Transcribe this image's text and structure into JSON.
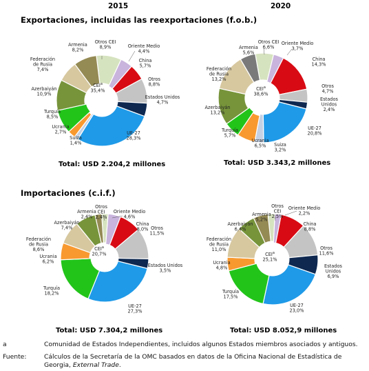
{
  "years": [
    "2015",
    "2020"
  ],
  "sections": {
    "exports": "Exportaciones, incluidas las reexportaciones (f.o.b.)",
    "imports": "Importaciones (c.i.f.)"
  },
  "totals": {
    "exp2015": "Total: USD 2.204,2 millones",
    "exp2020": "Total: USD 3.343,2 millones",
    "imp2015": "Total:  USD 7.304,2 millones",
    "imp2020": "Total: USD 8.052,9 millones"
  },
  "footnotes": {
    "a_key": "a",
    "a_text": "Comunidad de Estados Independientes, incluidos algunos Estados miembros asociados y antiguos.",
    "src_key": "Fuente:",
    "src_line1": "Cálculos de la Secretaría de la OMC basados en datos de la Oficina Nacional de Estadística de",
    "src_line2_plain": "Georgia, ",
    "src_line2_italic": "External Trade",
    "src_line2_end": "."
  },
  "colors": {
    "cei_other": "#d6e3bf",
    "oriente": "#c9b4dd",
    "china": "#d80b14",
    "otros": "#c4c4c4",
    "eeuu": "#0e2850",
    "ue": "#1f9ae8",
    "suiza": "#c4d1e4",
    "ucrania": "#f8992f",
    "turquia": "#22c41a",
    "azerbaiyan": "#77943b",
    "rusia": "#d7c8a0",
    "armenia": "#948a54",
    "gray2020": "#7a7a7a"
  },
  "chart_data": [
    {
      "type": "pie",
      "title": "Exportaciones, incluidas las reexportaciones (f.o.b.)",
      "subtitle": "2015",
      "inner_label": [
        "CEI",
        "35,4%"
      ],
      "inner_label_sup": "a",
      "slices": [
        {
          "name": "Otros CEI",
          "value": 8.9,
          "color": "#d6e3bf",
          "group": "cei"
        },
        {
          "name": "Oriente Medio",
          "value": 4.4,
          "color": "#c9b4dd"
        },
        {
          "name": "China",
          "value": 5.7,
          "color": "#d80b14"
        },
        {
          "name": "Otros",
          "value": 8.8,
          "color": "#c4c4c4"
        },
        {
          "name": "Estados Unidos",
          "value": 4.7,
          "color": "#0e2850"
        },
        {
          "name": "UE-27",
          "value": 28.3,
          "color": "#1f9ae8"
        },
        {
          "name": "Suiza",
          "value": 1.4,
          "color": "#c4d1e4"
        },
        {
          "name": "Ucrania",
          "value": 2.7,
          "color": "#f8992f",
          "group": "cei"
        },
        {
          "name": "Turquía",
          "value": 8.5,
          "color": "#22c41a"
        },
        {
          "name": "Azerbaiyán",
          "value": 10.9,
          "color": "#77943b",
          "group": "cei"
        },
        {
          "name": "Federación de Rusia",
          "value": 7.4,
          "color": "#d7c8a0",
          "group": "cei"
        },
        {
          "name": "Armenia",
          "value": 8.2,
          "color": "#948a54",
          "group": "cei"
        }
      ]
    },
    {
      "type": "pie",
      "title": "Exportaciones, incluidas las reexportaciones (f.o.b.)",
      "subtitle": "2020",
      "inner_label": [
        "CEI",
        "38,6%"
      ],
      "inner_label_sup": "a",
      "slices": [
        {
          "name": "Otros CEI",
          "value": 6.6,
          "color": "#d6e3bf",
          "group": "cei"
        },
        {
          "name": "Oriente Medio",
          "value": 3.7,
          "color": "#c9b4dd"
        },
        {
          "name": "China",
          "value": 14.3,
          "color": "#d80b14"
        },
        {
          "name": "Otros",
          "value": 4.7,
          "color": "#c4c4c4"
        },
        {
          "name": "Estados Unidos",
          "value": 2.4,
          "color": "#0e2850"
        },
        {
          "name": "UE-27",
          "value": 20.8,
          "color": "#1f9ae8"
        },
        {
          "name": "Suiza",
          "value": 3.2,
          "color": "#c4d1e4"
        },
        {
          "name": "Ucrania",
          "value": 6.5,
          "color": "#f8992f",
          "group": "cei"
        },
        {
          "name": "Turquía",
          "value": 5.7,
          "color": "#22c41a"
        },
        {
          "name": "Azerbaiyán",
          "value": 13.2,
          "color": "#77943b",
          "group": "cei"
        },
        {
          "name": "Federación de Rusia",
          "value": 13.2,
          "color": "#d7c8a0",
          "group": "cei"
        },
        {
          "name": "Armenia",
          "value": 5.6,
          "color": "#7a7a7a",
          "group": "cei"
        }
      ]
    },
    {
      "type": "pie",
      "title": "Importaciones (c.i.f.)",
      "subtitle": "2015",
      "inner_label": [
        "CEI",
        "20,7%"
      ],
      "inner_label_sup": "a",
      "slices": [
        {
          "name": "Otros CEI",
          "value": 2.4,
          "color": "#d6e3bf",
          "group": "cei"
        },
        {
          "name": "Oriente Medio",
          "value": 4.6,
          "color": "#c9b4dd"
        },
        {
          "name": "China",
          "value": 8.0,
          "color": "#d80b14"
        },
        {
          "name": "Otros",
          "value": 11.5,
          "color": "#c4c4c4"
        },
        {
          "name": "Estados Unidos",
          "value": 3.5,
          "color": "#0e2850"
        },
        {
          "name": "UE-27",
          "value": 27.3,
          "color": "#1f9ae8"
        },
        {
          "name": "Turquía",
          "value": 18.2,
          "color": "#22c41a"
        },
        {
          "name": "Ucrania",
          "value": 6.2,
          "color": "#f8992f",
          "group": "cei"
        },
        {
          "name": "Federación de Rusia",
          "value": 8.6,
          "color": "#d7c8a0",
          "group": "cei"
        },
        {
          "name": "Azerbaiyán",
          "value": 7.4,
          "color": "#77943b",
          "group": "cei"
        },
        {
          "name": "Armenia",
          "value": 2.4,
          "color": "#948a54",
          "group": "cei"
        }
      ]
    },
    {
      "type": "pie",
      "title": "Importaciones (c.i.f.)",
      "subtitle": "2020",
      "inner_label": [
        "CEI",
        "25,1%"
      ],
      "inner_label_sup": "a",
      "slices": [
        {
          "name": "Otros CEI",
          "value": 2.5,
          "color": "#d6e3bf",
          "group": "cei"
        },
        {
          "name": "Oriente Medio",
          "value": 2.2,
          "color": "#c9b4dd"
        },
        {
          "name": "China",
          "value": 8.8,
          "color": "#d80b14"
        },
        {
          "name": "Otros",
          "value": 11.6,
          "color": "#c4c4c4"
        },
        {
          "name": "Estados Unidos",
          "value": 6.9,
          "color": "#0e2850"
        },
        {
          "name": "UE-27",
          "value": 23.0,
          "color": "#1f9ae8"
        },
        {
          "name": "Turquía",
          "value": 17.5,
          "color": "#22c41a"
        },
        {
          "name": "Ucrania",
          "value": 4.8,
          "color": "#f8992f",
          "group": "cei"
        },
        {
          "name": "Federación de Rusia",
          "value": 11.0,
          "color": "#d7c8a0",
          "group": "cei"
        },
        {
          "name": "Azerbaiyán",
          "value": 6.4,
          "color": "#77943b",
          "group": "cei"
        },
        {
          "name": "Armenia",
          "value": 5.2,
          "color": "#948a54",
          "group": "cei"
        }
      ]
    }
  ],
  "labels": [
    [
      {
        "lines": [
          "Otros CEI",
          "8,9%"
        ]
      },
      {
        "lines": [
          "Oriente Medio",
          "4,4%"
        ]
      },
      {
        "lines": [
          "China",
          "5,7%"
        ]
      },
      {
        "lines": [
          "Otros",
          "8,8%"
        ]
      },
      {
        "lines": [
          "Estados Unidos",
          "4,7%"
        ]
      },
      {
        "lines": [
          "UE-27",
          "28,3%"
        ]
      },
      {
        "lines": [
          "Suiza",
          "1,4%"
        ]
      },
      {
        "lines": [
          "Ucrania",
          "2,7%"
        ]
      },
      {
        "lines": [
          "Turquía",
          "8,5%"
        ]
      },
      {
        "lines": [
          "Azerbaiyán",
          "10,9%"
        ]
      },
      {
        "lines": [
          "Federación",
          "de Rusia",
          "7,4%"
        ]
      },
      {
        "lines": [
          "Armenia",
          "8,2%"
        ]
      }
    ],
    [
      {
        "lines": [
          "Otros CEI",
          "6,6%"
        ]
      },
      {
        "lines": [
          "Oriente Medio",
          "3,7%"
        ]
      },
      {
        "lines": [
          "China",
          "14,3%"
        ]
      },
      {
        "lines": [
          "Otros",
          "4,7%"
        ]
      },
      {
        "lines": [
          "Estados",
          "Unidos",
          "2,4%"
        ]
      },
      {
        "lines": [
          "UE-27",
          "20,8%"
        ]
      },
      {
        "lines": [
          "Suiza",
          "3,2%"
        ]
      },
      {
        "lines": [
          "Ucrania",
          "6,5%"
        ]
      },
      {
        "lines": [
          "Turquía",
          "5,7%"
        ]
      },
      {
        "lines": [
          "Azerbaiyán",
          "13,2%"
        ]
      },
      {
        "lines": [
          "Federación",
          "de Rusia",
          "13,2%"
        ]
      },
      {
        "lines": [
          "Armenia",
          "5,6%"
        ]
      }
    ],
    [
      {
        "lines": [
          "Otros",
          "CEI",
          "2,4%"
        ]
      },
      {
        "lines": [
          "Oriente Medio",
          "4,6%"
        ]
      },
      {
        "lines": [
          "China",
          "8,0%"
        ]
      },
      {
        "lines": [
          "Otros",
          "11,5%"
        ]
      },
      {
        "lines": [
          "Estados Unidos",
          "3,5%"
        ]
      },
      {
        "lines": [
          "UE-27",
          "27,3%"
        ]
      },
      {
        "lines": [
          "Turquía",
          "18,2%"
        ]
      },
      {
        "lines": [
          "Ucrania",
          "6,2%"
        ]
      },
      {
        "lines": [
          "Federación",
          "de Rusia",
          "8,6%"
        ]
      },
      {
        "lines": [
          "Azerbaiyán",
          "7,4%"
        ]
      },
      {
        "lines": [
          "Armenia",
          "2,4%"
        ]
      }
    ],
    [
      {
        "lines": [
          "Otros",
          "CEI",
          "2,5%"
        ]
      },
      {
        "lines": [
          "Oriente Medio",
          "2,2%"
        ]
      },
      {
        "lines": [
          "China",
          "8,8%"
        ]
      },
      {
        "lines": [
          "Otros",
          "11,6%"
        ]
      },
      {
        "lines": [
          "Estados",
          "Unidos",
          "6,9%"
        ]
      },
      {
        "lines": [
          "UE-27",
          "23,0%"
        ]
      },
      {
        "lines": [
          "Turquía",
          "17,5%"
        ]
      },
      {
        "lines": [
          "Ucrania",
          "4,8%"
        ]
      },
      {
        "lines": [
          "Federación",
          "de Rusia",
          "11,0%"
        ]
      },
      {
        "lines": [
          "Azerbaiyán",
          "6,4%"
        ]
      },
      {
        "lines": [
          "Armenia",
          "5,2%"
        ]
      }
    ]
  ]
}
